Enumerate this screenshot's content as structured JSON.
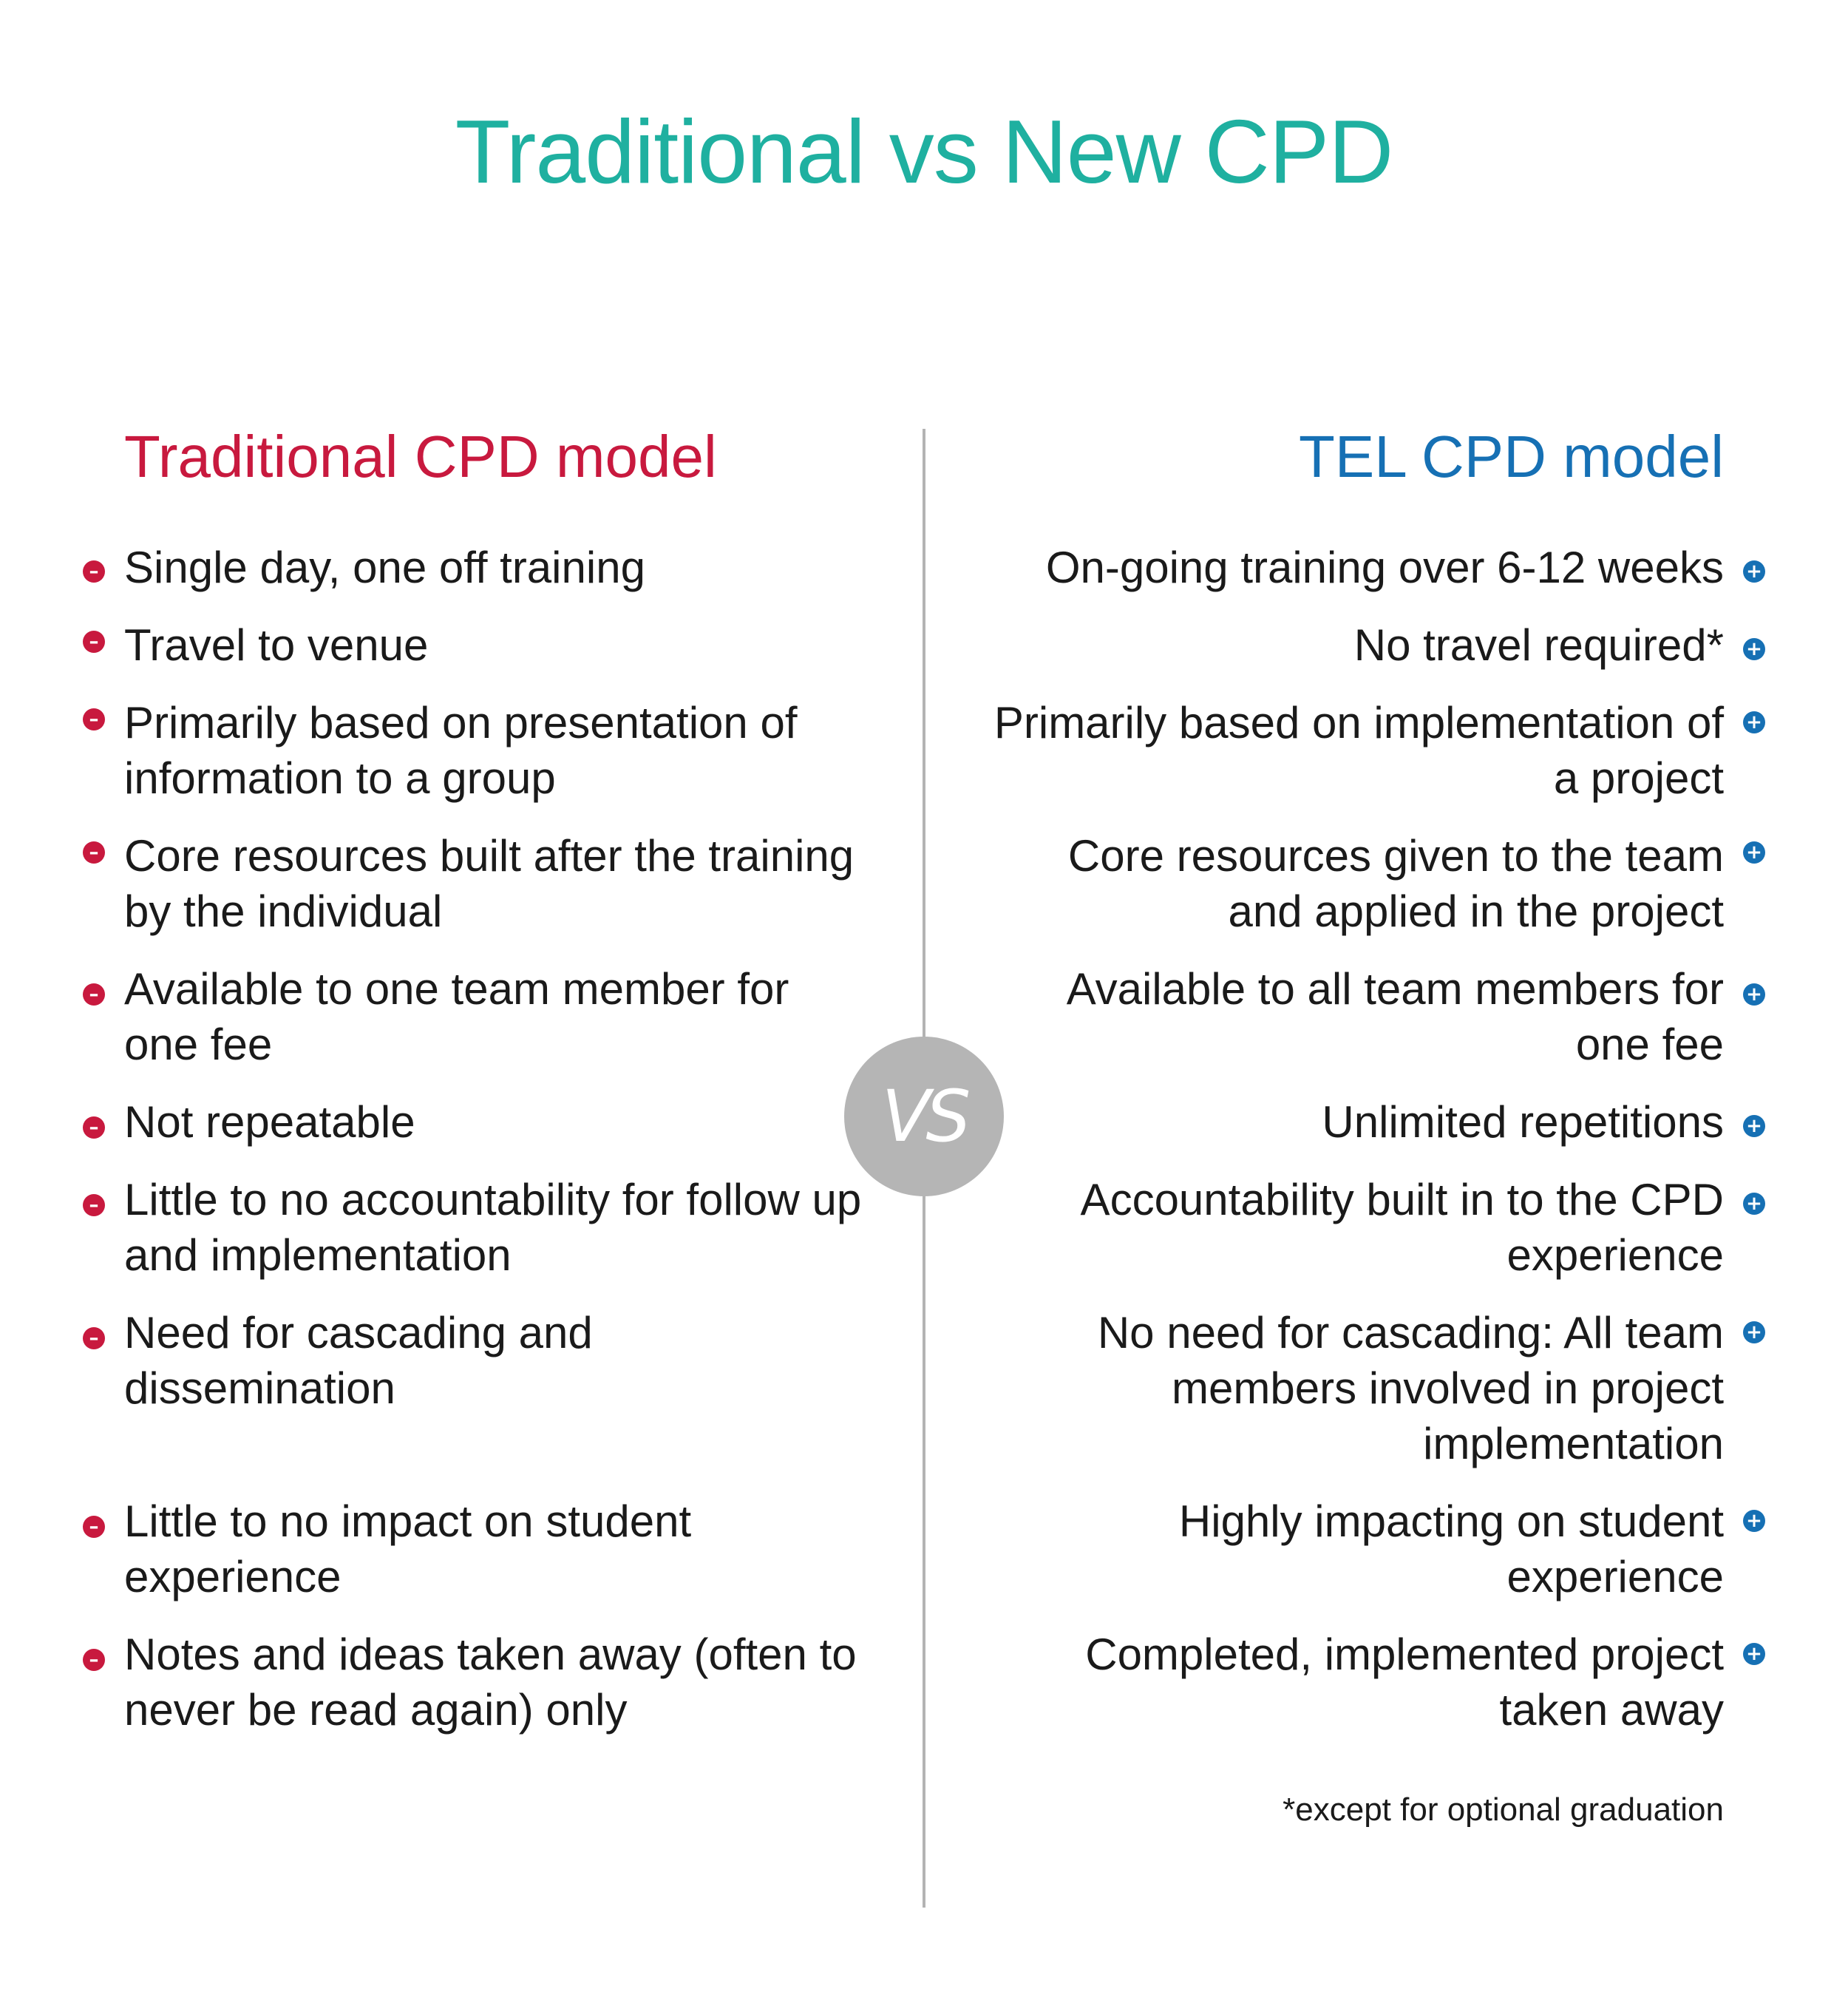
{
  "title": "Traditional vs New CPD",
  "vs_label": "VS",
  "colors": {
    "title": "#1fb0a0",
    "traditional": "#c8193e",
    "tel": "#1670b4",
    "divider": "#b3b3b3",
    "vs_badge": "#b5b5b5"
  },
  "traditional": {
    "heading": "Traditional CPD model",
    "bullet_icon": "minus-circle-icon",
    "items": [
      "Single day, one off training",
      "Travel to venue",
      "Primarily based on presentation of information to a group",
      "Core resources built after the training by the individual",
      "Available to one team member for one fee",
      "Not repeatable",
      "Little to no accountability for follow up and implementation",
      "Need for cascading and dissemination",
      "Little to no impact on student experience",
      "Notes and ideas taken away (often to never be read again) only"
    ]
  },
  "tel": {
    "heading": "TEL CPD model",
    "bullet_icon": "plus-circle-icon",
    "items": [
      "On-going training over 6-12 weeks",
      "No travel required*",
      "Primarily based on implementation of a project",
      "Core resources given to the team and applied in the project",
      "Available to all team members for one fee",
      "Unlimited repetitions",
      "Accountability built in to the CPD experience",
      "No need for cascading: All team members involved in project implementation",
      "Highly impacting on student experience",
      "Completed, implemented project taken away"
    ],
    "footnote": "*except for optional graduation"
  }
}
